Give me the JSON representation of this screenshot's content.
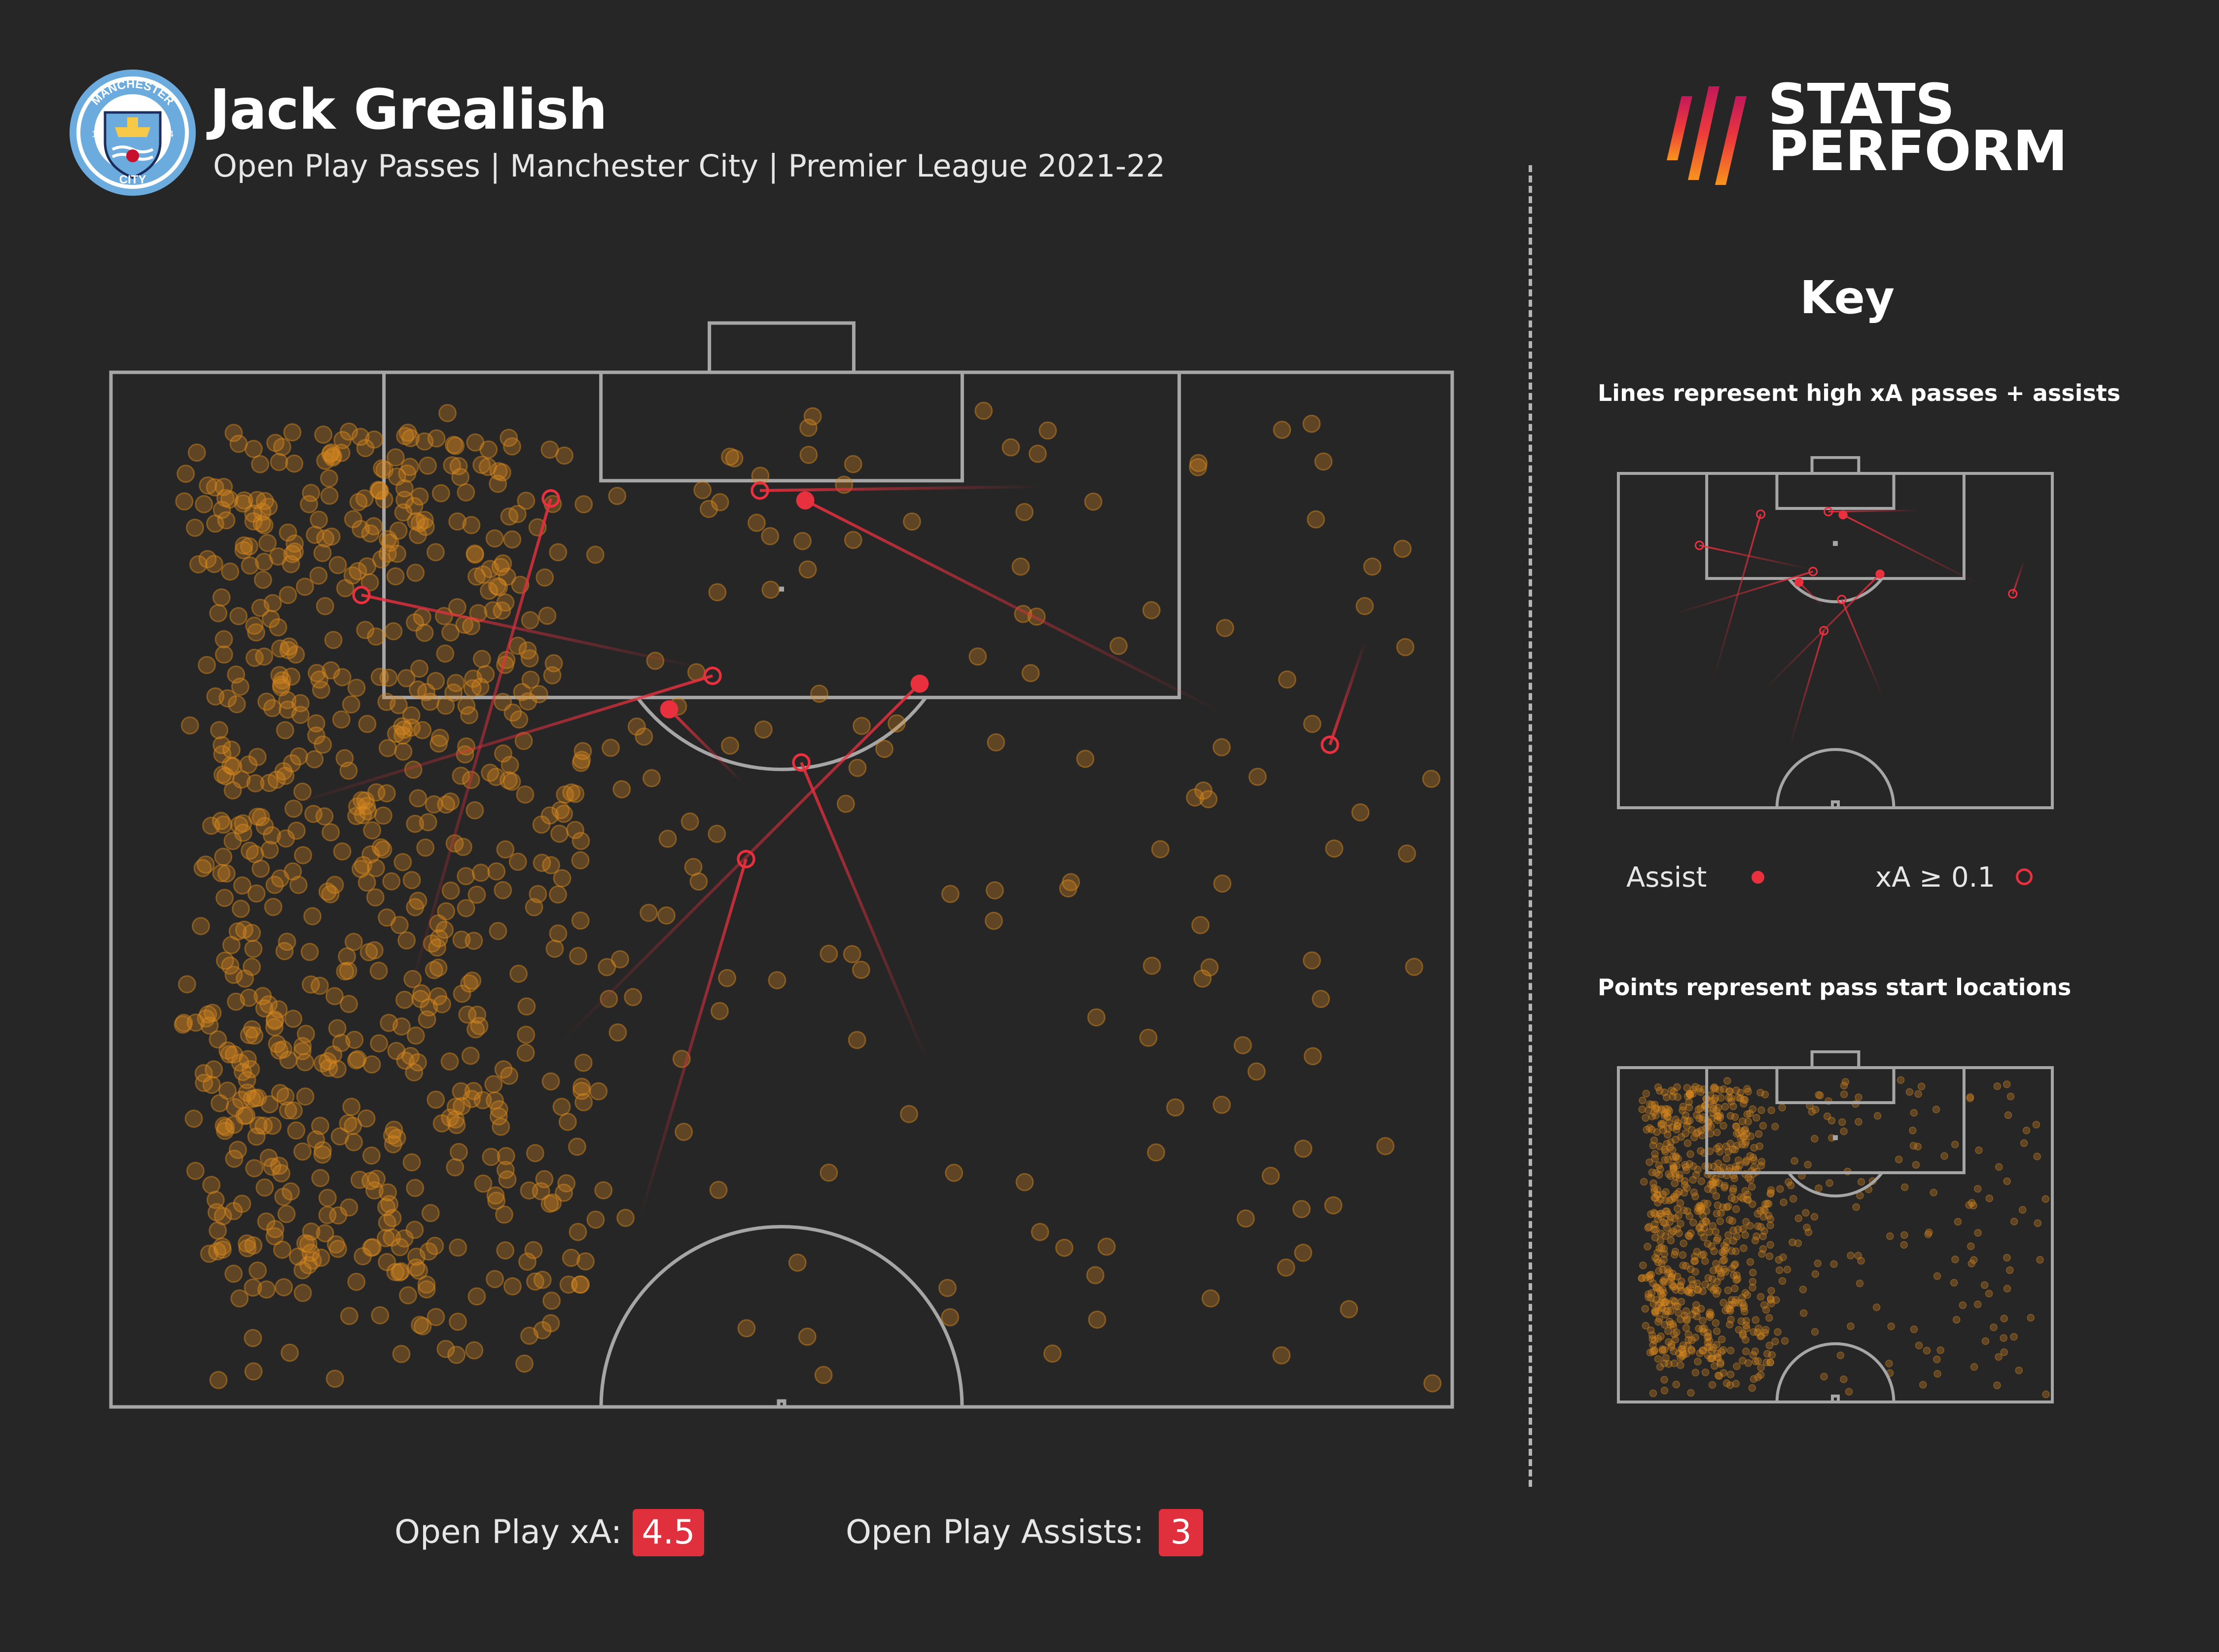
{
  "header": {
    "player_name": "Jack Grealish",
    "subtitle": "Open Play Passes | Manchester City | Premier League 2021-22",
    "club_badge": {
      "icon": "manchester-city-crest-icon",
      "text_top": "MANCHESTER",
      "text_bottom": "CITY",
      "year_left": "18",
      "year_right": "94",
      "color": "#6cabdd"
    },
    "brand": {
      "line1": "STATS",
      "line2": "PERFORM",
      "icon": "stats-perform-stripes-icon"
    }
  },
  "key": {
    "title": "Key",
    "lines_caption": "Lines represent high xA passes + assists",
    "points_caption": "Points represent pass start locations",
    "legend": [
      {
        "label": "Assist",
        "marker": "filled-circle"
      },
      {
        "label": "xA ≥ 0.1",
        "marker": "hollow-circle"
      }
    ]
  },
  "stats": {
    "xa_label": "Open Play xA:",
    "xa_value": "4.5",
    "assists_label": "Open Play Assists:",
    "assists_value": "3"
  },
  "colors": {
    "background": "#262626",
    "pitch_lines": "#a6a6a6",
    "point": "#d98a1e",
    "highlight": "#e8303e",
    "badge": "#e1303d"
  },
  "chart_data": {
    "type": "scatter",
    "pitch": {
      "length": 105,
      "width": 68,
      "view": "attacking half"
    },
    "highlight_passes": [
      {
        "type": "assist",
        "start": [
          87.7,
          56.4
        ],
        "end": [
          98.5,
          35.2
        ]
      },
      {
        "type": "assist",
        "start": [
          84.2,
          32.0
        ],
        "end": [
          87.9,
          28.3
        ]
      },
      {
        "type": "assist",
        "start": [
          71.0,
          22.8
        ],
        "end": [
          89.2,
          41.0
        ]
      },
      {
        "type": "xA",
        "start": [
          99.2,
          47.2
        ],
        "end": [
          99.0,
          32.9
        ]
      },
      {
        "type": "xA",
        "start": [
          90.0,
          30.0
        ],
        "end": [
          93.7,
          12.7
        ]
      },
      {
        "type": "xA",
        "start": [
          73.0,
          15.0
        ],
        "end": [
          98.6,
          22.3
        ]
      },
      {
        "type": "xA",
        "start": [
          83.0,
          8.9
        ],
        "end": [
          89.6,
          30.5
        ]
      },
      {
        "type": "xA",
        "start": [
          91.4,
          63.6
        ],
        "end": [
          86.1,
          61.8
        ]
      },
      {
        "type": "xA",
        "start": [
          62.0,
          26.8
        ],
        "end": [
          80.3,
          32.2
        ]
      },
      {
        "type": "xA",
        "start": [
          70.0,
          41.4
        ],
        "end": [
          85.2,
          35.0
        ]
      }
    ],
    "pass_starts_estimated_count": 900,
    "distribution_note": "Pass start points concentrated on the left flank in the attacking half"
  }
}
